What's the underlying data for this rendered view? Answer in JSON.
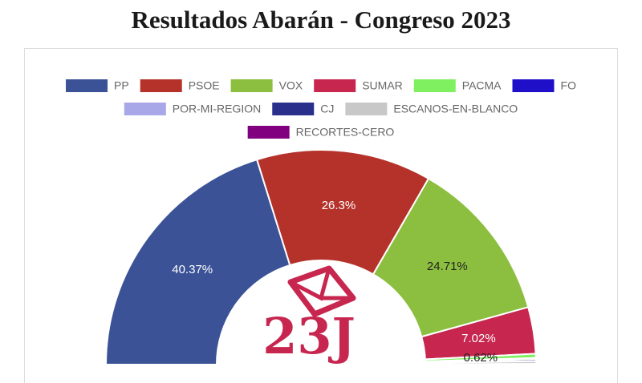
{
  "chart_data": {
    "type": "half-doughnut",
    "title": "Resultados Abarán - Congreso 2023",
    "categories": [
      "PP",
      "PSOE",
      "VOX",
      "SUMAR",
      "PACMA",
      "FO",
      "POR-MI-REGION",
      "CJ",
      "ESCANOS-EN-BLANCO",
      "RECORTES-CERO"
    ],
    "values": [
      40.37,
      26.3,
      24.71,
      7.02,
      0.62,
      0.06,
      0.12,
      0.3,
      0.4,
      0.1
    ],
    "value_labels": [
      "40.37%",
      "26.3%",
      "24.71%",
      "7.02%",
      "0.62%",
      null,
      null,
      null,
      null,
      null
    ],
    "colors": [
      "#3b5297",
      "#b5322b",
      "#8cbf3f",
      "#c7264f",
      "#7ff060",
      "#1f0fc9",
      "#a8a8e8",
      "#2b2f8c",
      "#c8c8c8",
      "#800080"
    ],
    "legend": "top"
  },
  "logo": "23J"
}
